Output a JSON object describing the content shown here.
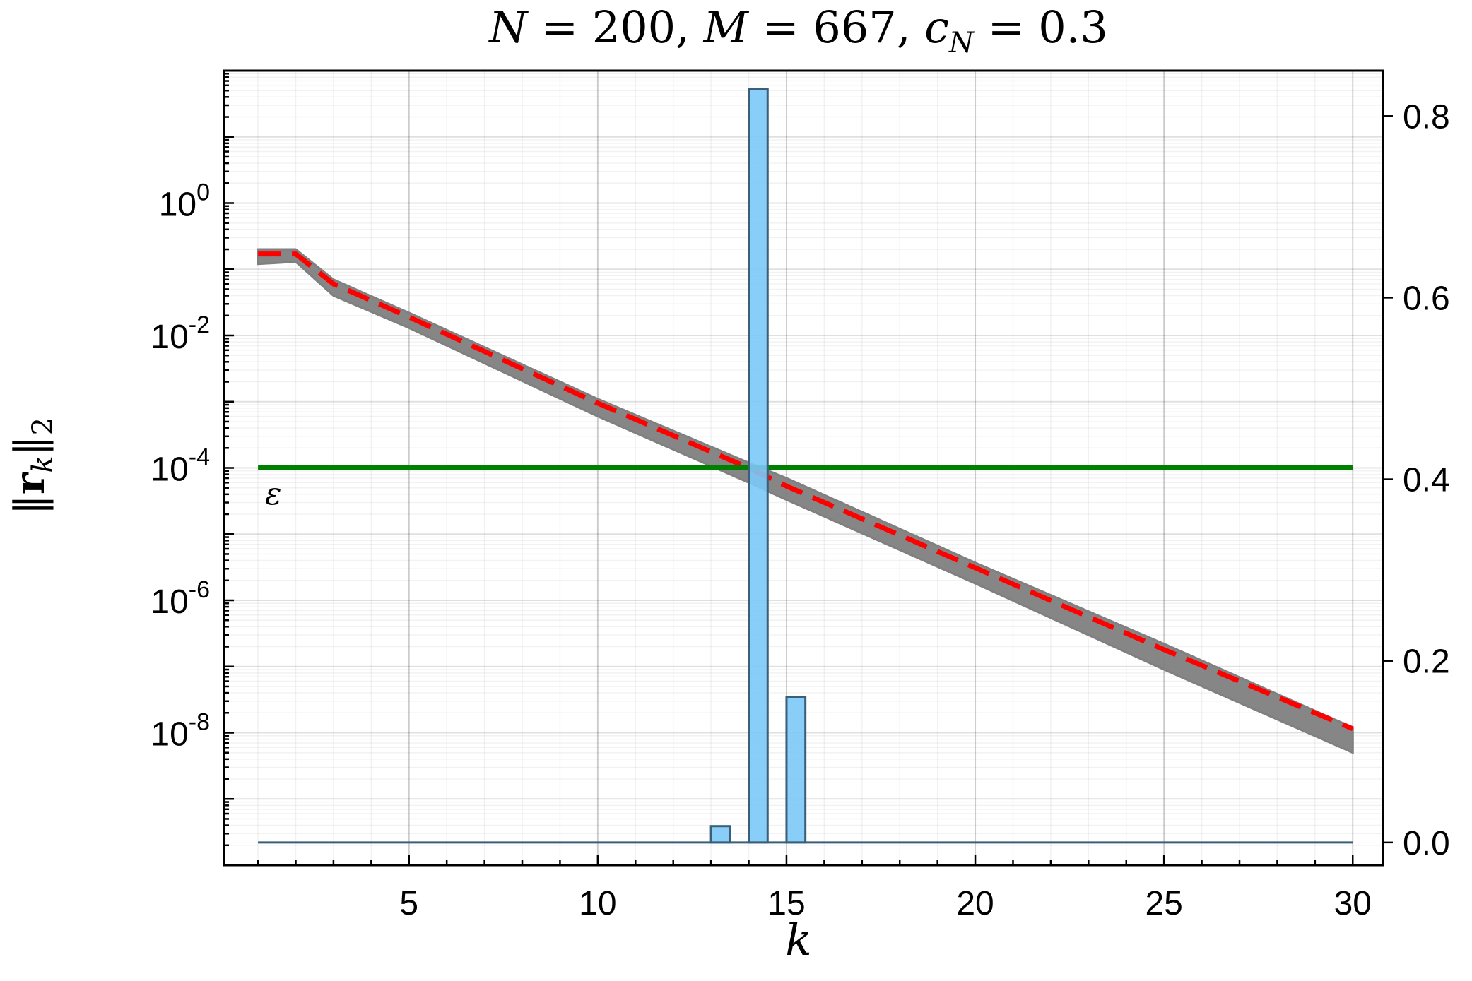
{
  "chart_data": {
    "type": "line",
    "title": "N = 200, M = 667, c_N = 0.3",
    "title_parts": {
      "n": "N",
      "eq1": " = 200, ",
      "m": "M",
      "eq2": " = 667, ",
      "c": "c",
      "sub": "N",
      "eq3": " = 0.3"
    },
    "xlabel": "k",
    "ylabel": "‖r_k‖_2",
    "ylabel_parts": {
      "bars_left": "‖",
      "r": "r",
      "k": "k",
      "bars_right": "‖",
      "sub": "2"
    },
    "xlim": [
      0.1,
      30.8
    ],
    "ylim_log": [
      1e-10,
      100
    ],
    "ylim_right": [
      -0.025,
      0.85
    ],
    "y_scale": "log",
    "grid": true,
    "x_ticks": [
      5,
      10,
      15,
      20,
      25,
      30
    ],
    "x_tick_labels": [
      "5",
      "10",
      "15",
      "20",
      "25",
      "30"
    ],
    "y_left_ticks": [
      {
        "value": 1,
        "base": "10",
        "exp": "0"
      },
      {
        "value": 0.01,
        "base": "10",
        "exp": "-2"
      },
      {
        "value": 0.0001,
        "base": "10",
        "exp": "-4"
      },
      {
        "value": 1e-06,
        "base": "10",
        "exp": "-6"
      },
      {
        "value": 1e-08,
        "base": "10",
        "exp": "-8"
      }
    ],
    "y_right_ticks": [
      0.0,
      0.2,
      0.4,
      0.6,
      0.8
    ],
    "y_right_tick_labels": [
      "0.0",
      "0.2",
      "0.4",
      "0.6",
      "0.8"
    ],
    "threshold": {
      "label": "ε",
      "value": 0.0001,
      "color": "#008000"
    },
    "band": {
      "color": "#808080",
      "x": [
        1,
        2,
        3,
        5,
        10,
        14,
        15,
        20,
        25,
        30
      ],
      "upper": [
        0.2,
        0.2,
        0.07,
        0.022,
        0.0011,
        0.00012,
        7e-05,
        3.7e-06,
        2.2e-07,
        1.2e-08
      ],
      "lower": [
        0.12,
        0.13,
        0.04,
        0.013,
        0.0006,
        6e-05,
        3.3e-05,
        1.8e-06,
        9e-08,
        5e-09
      ]
    },
    "series": [
      {
        "style": "dashed",
        "color": "#ff0000",
        "x": [
          1,
          2,
          3,
          5,
          10,
          14,
          15,
          20,
          25,
          30
        ],
        "values": [
          0.17,
          0.17,
          0.06,
          0.019,
          0.00095,
          0.0001,
          5.3e-05,
          3.1e-06,
          1.8e-07,
          1.15e-08
        ]
      }
    ],
    "histogram": {
      "axis": "right",
      "color": "#7cc8f8",
      "edge_color": "#3a5f78",
      "bar_width": 0.5,
      "x": [
        13.25,
        14.25,
        15.25
      ],
      "values": [
        0.018,
        0.83,
        0.16
      ]
    }
  }
}
